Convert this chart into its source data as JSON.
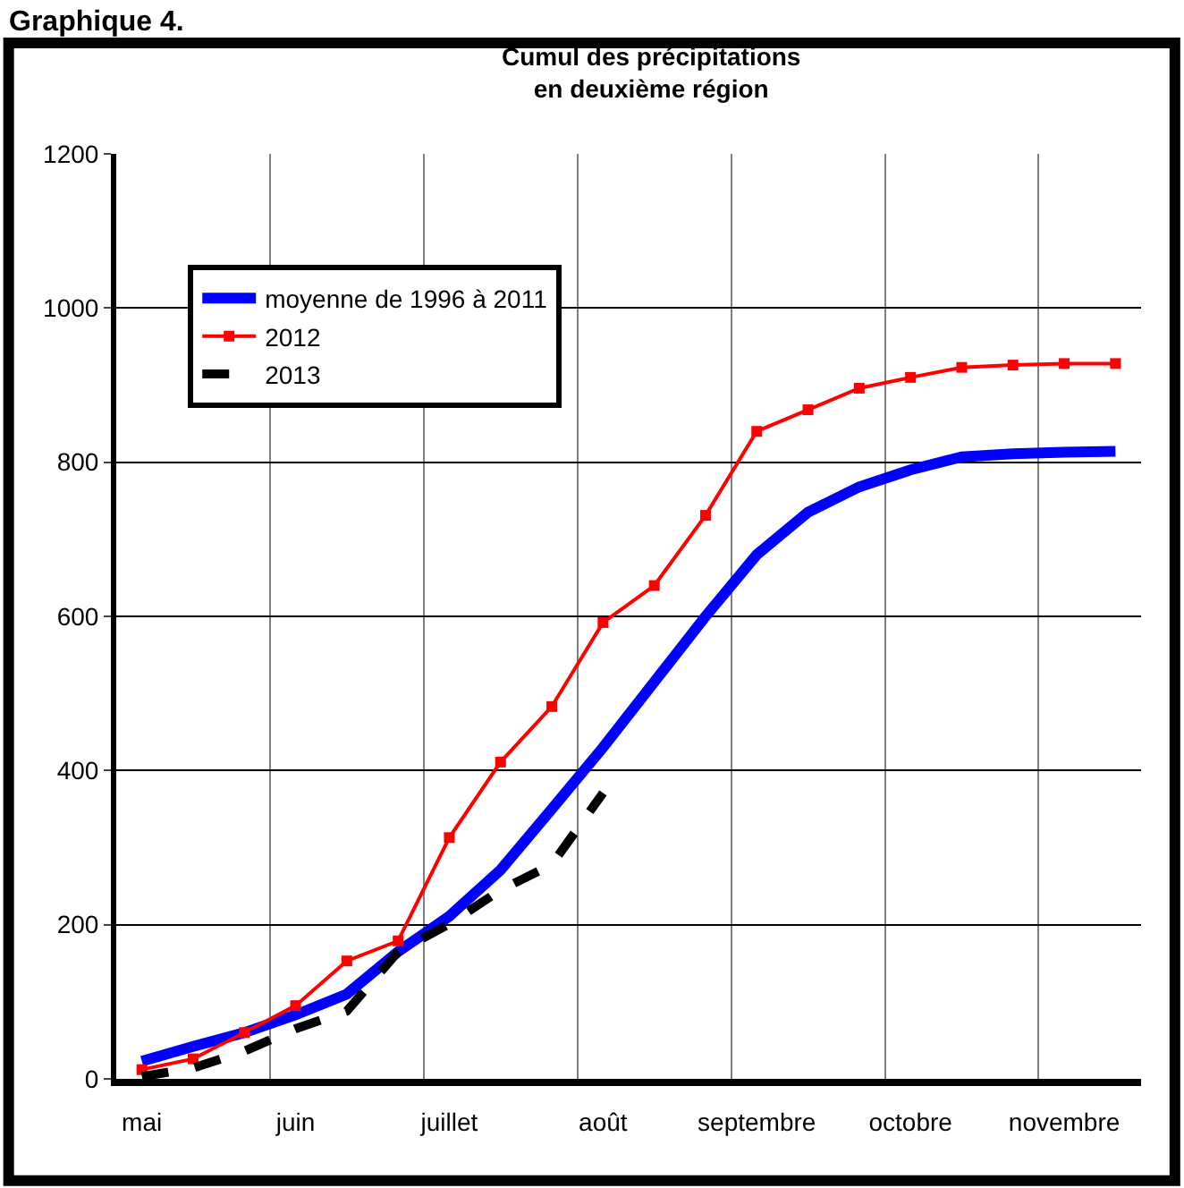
{
  "chart_data": {
    "type": "line",
    "title": "Cumul des précipitations\nen deuxième région",
    "annotations": [
      "Graphique 4."
    ],
    "categories": [
      "mai",
      null,
      null,
      "juin",
      null,
      null,
      "juillet",
      null,
      null,
      "août",
      null,
      null,
      "septembre",
      null,
      null,
      "octobre",
      null,
      null,
      "novembre",
      null
    ],
    "series": [
      {
        "name": "moyenne de 1996 à 2011",
        "color": "#0000ff",
        "line_style": "solid",
        "marker": "none",
        "values": [
          23,
          42,
          60,
          83,
          110,
          165,
          211,
          271,
          350,
          430,
          515,
          600,
          680,
          735,
          768,
          790,
          807,
          811,
          813,
          814
        ]
      },
      {
        "name": "2012",
        "color": "#ff0000",
        "line_style": "solid",
        "marker": "square",
        "values": [
          12,
          26,
          60,
          95,
          153,
          179,
          313,
          411,
          483,
          592,
          640,
          731,
          840,
          868,
          896,
          910,
          923,
          926,
          928,
          928
        ]
      },
      {
        "name": "2013",
        "color": "#000000",
        "line_style": "dashed",
        "marker": "none",
        "values": [
          3,
          14,
          36,
          65,
          88,
          165,
          201,
          245,
          278,
          371,
          null,
          null,
          null,
          null,
          null,
          null,
          null,
          null,
          null,
          null
        ]
      }
    ],
    "ylim": [
      0,
      1200
    ],
    "yticks": [
      0,
      200,
      400,
      600,
      800,
      1000,
      1200
    ],
    "grid": true,
    "legend": "top left"
  }
}
